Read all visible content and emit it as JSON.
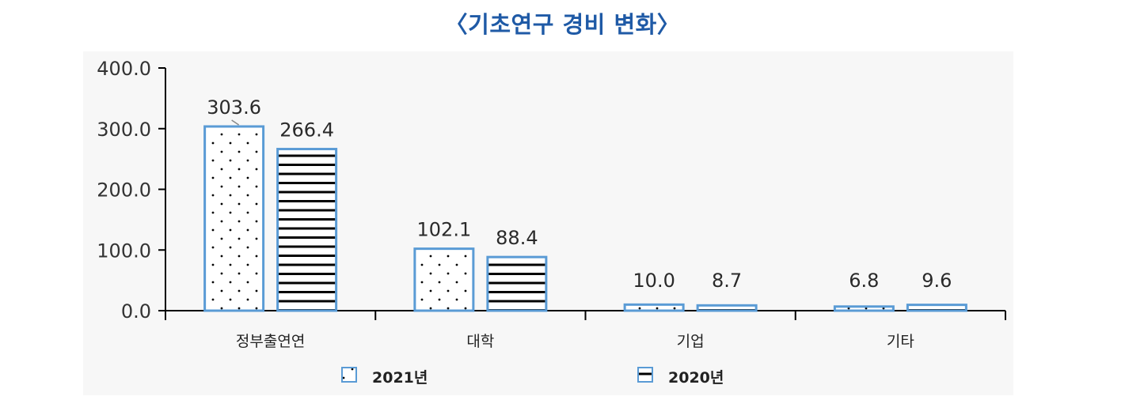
{
  "title": "〈기초연구 경비 변화〉",
  "colors": {
    "title": "#1f5aa6",
    "bar_border": "#5a9bd5",
    "pattern_fill": "#000000",
    "axis": "#000000",
    "plot_bg": "#f7f7f7"
  },
  "chart_data": {
    "type": "bar",
    "title": "〈기초연구 경비 변화〉",
    "xlabel": "",
    "ylabel": "",
    "categories": [
      "정부출연연",
      "대학",
      "기업",
      "기타"
    ],
    "series": [
      {
        "name": "2021년",
        "values": [
          303.6,
          102.1,
          10.0,
          6.8
        ],
        "labels": [
          "303.6",
          "102.1",
          "10.0",
          "6.8"
        ],
        "pattern": "dots"
      },
      {
        "name": "2020년",
        "values": [
          266.4,
          88.4,
          8.7,
          9.6
        ],
        "labels": [
          "266.4",
          "88.4",
          "8.7",
          "9.6"
        ],
        "pattern": "hlines"
      }
    ],
    "ylim": [
      0,
      400
    ],
    "yticks": [
      0,
      100,
      200,
      300,
      400
    ],
    "ytick_labels": [
      "0.0",
      "100.0",
      "200.0",
      "300.0",
      "400.0"
    ],
    "grid": false,
    "legend_position": "bottom-center"
  }
}
